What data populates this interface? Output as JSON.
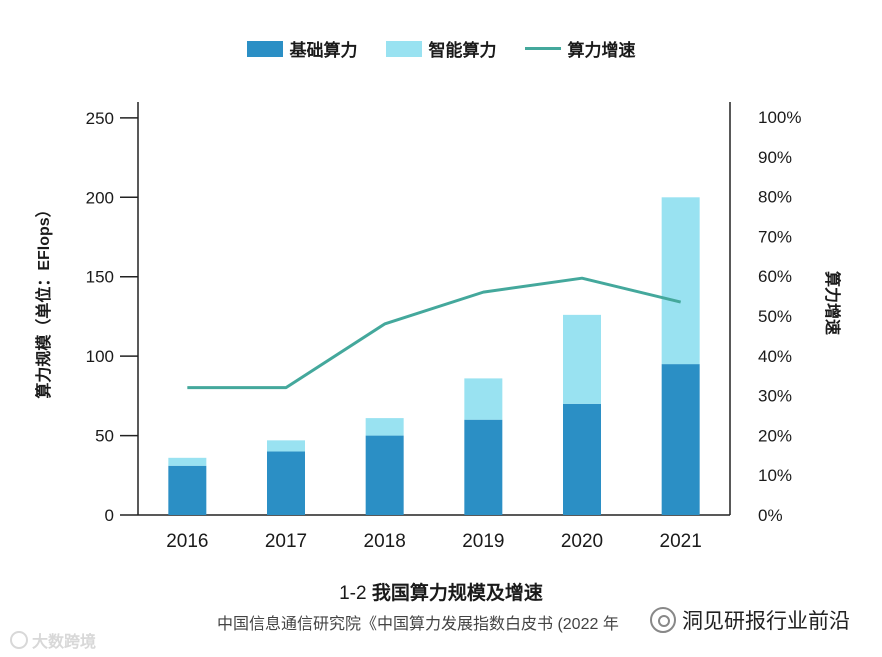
{
  "chart_data": {
    "type": "bar",
    "stacked": true,
    "categories": [
      "2016",
      "2017",
      "2018",
      "2019",
      "2020",
      "2021"
    ],
    "series": [
      {
        "name": "基础算力",
        "values": [
          31,
          40,
          50,
          60,
          70,
          95
        ],
        "color": "#2b8fc5"
      },
      {
        "name": "智能算力",
        "values": [
          5,
          7,
          11,
          26,
          56,
          105
        ],
        "color": "#99e2f1"
      }
    ],
    "line_series": {
      "name": "算力增速",
      "values": [
        32,
        32,
        48,
        56,
        59.5,
        53.5
      ],
      "color": "#44a89c",
      "axis": "right"
    },
    "ylabel": "算力规模（单位：EFlops）",
    "ylabel_right": "算力增速",
    "ylim": [
      0,
      250
    ],
    "yticks": [
      0,
      50,
      100,
      150,
      200,
      250
    ],
    "ylim_right": [
      0,
      100
    ],
    "yticks_right": [
      "0%",
      "10%",
      "20%",
      "30%",
      "40%",
      "50%",
      "60%",
      "70%",
      "80%",
      "90%",
      "100%"
    ],
    "title_num": "1-2",
    "title": "我国算力规模及增速",
    "source": "中国信息通信研究院《中国算力发展指数白皮书 (2022 年",
    "legend_position": "top-center"
  },
  "watermark_left": "大数跨境",
  "watermark_right": "洞见研报行业前沿"
}
